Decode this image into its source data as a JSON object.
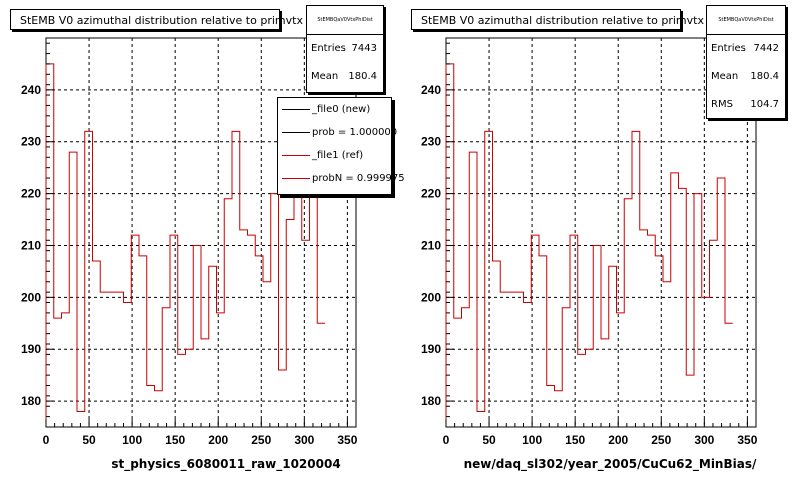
{
  "chart_data": [
    {
      "type": "step",
      "title": "StEMB V0 azimuthal distribution relative to primvtx",
      "xlabel": "st_physics_6080011_raw_1020004",
      "ylabel": "",
      "xlim": [
        0,
        360
      ],
      "ylim": [
        175,
        250
      ],
      "xticks": [
        0,
        50,
        100,
        150,
        200,
        250,
        300,
        350
      ],
      "yticks": [
        180,
        190,
        200,
        210,
        220,
        230,
        240
      ],
      "grid": true,
      "stats": {
        "name": "StEMBQaV0VtxPhiDist",
        "rows": [
          {
            "label": "Entries",
            "value": "7443"
          },
          {
            "label": "Mean",
            "value": "180.4"
          }
        ]
      },
      "legend": [
        {
          "label": "_file0 (new)",
          "color": "#000000"
        },
        {
          "label": "prob = 1.000000",
          "color": "#000000"
        },
        {
          "label": "_file1 (ref)",
          "color": "#cc0000"
        },
        {
          "label": "probN = 0.999975",
          "color": "#cc0000"
        }
      ],
      "series": [
        {
          "color": "#cc0000",
          "bin_width": 9,
          "values": [
            245,
            196,
            197,
            228,
            178,
            232,
            207,
            201,
            201,
            201,
            199,
            212,
            208,
            183,
            182,
            198,
            212,
            189,
            190,
            210,
            192,
            206,
            197,
            219,
            232,
            213,
            212,
            208,
            203,
            220,
            186,
            215,
            220,
            211,
            223,
            195
          ]
        }
      ]
    },
    {
      "type": "step",
      "title": "StEMB V0 azimuthal distribution relative to primvtx",
      "xlabel": "new/daq_sl302/year_2005/CuCu62_MinBias/",
      "ylabel": "",
      "xlim": [
        0,
        360
      ],
      "ylim": [
        175,
        250
      ],
      "xticks": [
        0,
        50,
        100,
        150,
        200,
        250,
        300,
        350
      ],
      "yticks": [
        180,
        190,
        200,
        210,
        220,
        230,
        240
      ],
      "grid": true,
      "stats": {
        "name": "StEMBQaV0VtxPhiDist",
        "rows": [
          {
            "label": "Entries",
            "value": "7442"
          },
          {
            "label": "Mean",
            "value": "180.4"
          },
          {
            "label": "RMS",
            "value": "104.7"
          }
        ]
      },
      "series": [
        {
          "color": "#cc0000",
          "bin_width": 9,
          "values": [
            245,
            196,
            198,
            228,
            178,
            232,
            207,
            201,
            201,
            201,
            199,
            212,
            208,
            183,
            182,
            198,
            212,
            189,
            190,
            210,
            192,
            206,
            197,
            219,
            232,
            213,
            212,
            208,
            203,
            224,
            221,
            185,
            220,
            200,
            211,
            223,
            195
          ]
        }
      ]
    }
  ]
}
